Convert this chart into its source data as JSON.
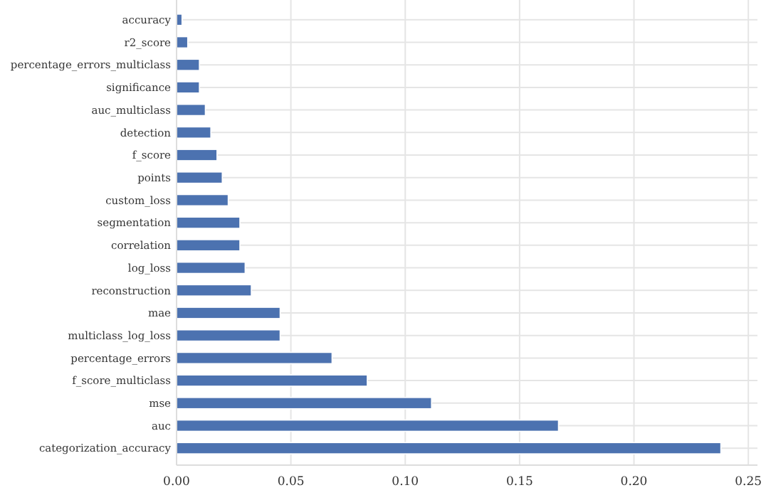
{
  "chart_data": {
    "type": "bar",
    "orientation": "horizontal",
    "categories": [
      "accuracy",
      "r2_score",
      "percentage_errors_multiclass",
      "significance",
      "auc_multiclass",
      "detection",
      "f_score",
      "points",
      "custom_loss",
      "segmentation",
      "correlation",
      "log_loss",
      "reconstruction",
      "mae",
      "multiclass_log_loss",
      "percentage_errors",
      "f_score_multiclass",
      "mse",
      "auc",
      "categorization_accuracy"
    ],
    "values": [
      0.0024,
      0.0049,
      0.01,
      0.01,
      0.0126,
      0.015,
      0.0177,
      0.02,
      0.0226,
      0.0277,
      0.0277,
      0.03,
      0.0327,
      0.0453,
      0.0453,
      0.068,
      0.0834,
      0.1115,
      0.167,
      0.238
    ],
    "color": "#4c72b0",
    "xlim": [
      0,
      0.254
    ],
    "xticks": [
      {
        "value": 0,
        "label": "0.00"
      },
      {
        "value": 0.05,
        "label": "0.05"
      },
      {
        "value": 0.1,
        "label": "0.10"
      },
      {
        "value": 0.15,
        "label": "0.15"
      },
      {
        "value": 0.2,
        "label": "0.20"
      },
      {
        "value": 0.25,
        "label": "0.25"
      }
    ],
    "grid": true
  }
}
